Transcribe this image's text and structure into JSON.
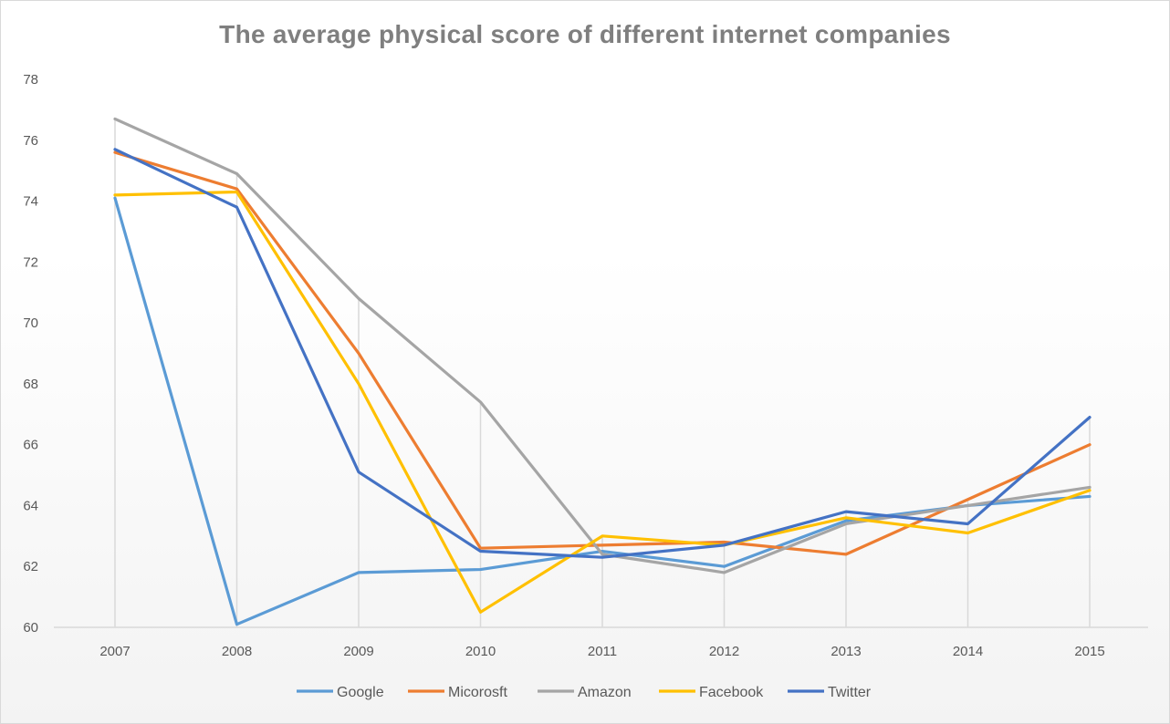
{
  "chart_data": {
    "type": "line",
    "title": "The average physical score of different internet companies",
    "xlabel": "",
    "ylabel": "",
    "categories": [
      "2007",
      "2008",
      "2009",
      "2010",
      "2011",
      "2012",
      "2013",
      "2014",
      "2015"
    ],
    "ylim": [
      60,
      78
    ],
    "yticks": [
      "60",
      "62",
      "64",
      "66",
      "68",
      "70",
      "72",
      "74",
      "76",
      "78"
    ],
    "grid": "vertical drop lines",
    "legend_position": "bottom",
    "series": [
      {
        "name": "Google",
        "color": "#5b9bd5",
        "values": [
          74.1,
          60.1,
          61.8,
          61.9,
          62.5,
          62.0,
          63.5,
          64.0,
          64.3
        ]
      },
      {
        "name": "Micorosft",
        "color": "#ed7d31",
        "values": [
          75.6,
          74.4,
          69.0,
          62.6,
          62.7,
          62.8,
          62.4,
          64.2,
          66.0
        ]
      },
      {
        "name": "Amazon",
        "color": "#a5a5a5",
        "values": [
          76.7,
          74.9,
          70.8,
          67.4,
          62.4,
          61.8,
          63.4,
          64.0,
          64.6
        ]
      },
      {
        "name": "Facebook",
        "color": "#ffc000",
        "values": [
          74.2,
          74.3,
          68.0,
          60.5,
          63.0,
          62.7,
          63.6,
          63.1,
          64.5
        ]
      },
      {
        "name": "Twitter",
        "color": "#4472c4",
        "values": [
          75.7,
          73.8,
          65.1,
          62.5,
          62.3,
          62.7,
          63.8,
          63.4,
          66.9
        ]
      }
    ]
  }
}
